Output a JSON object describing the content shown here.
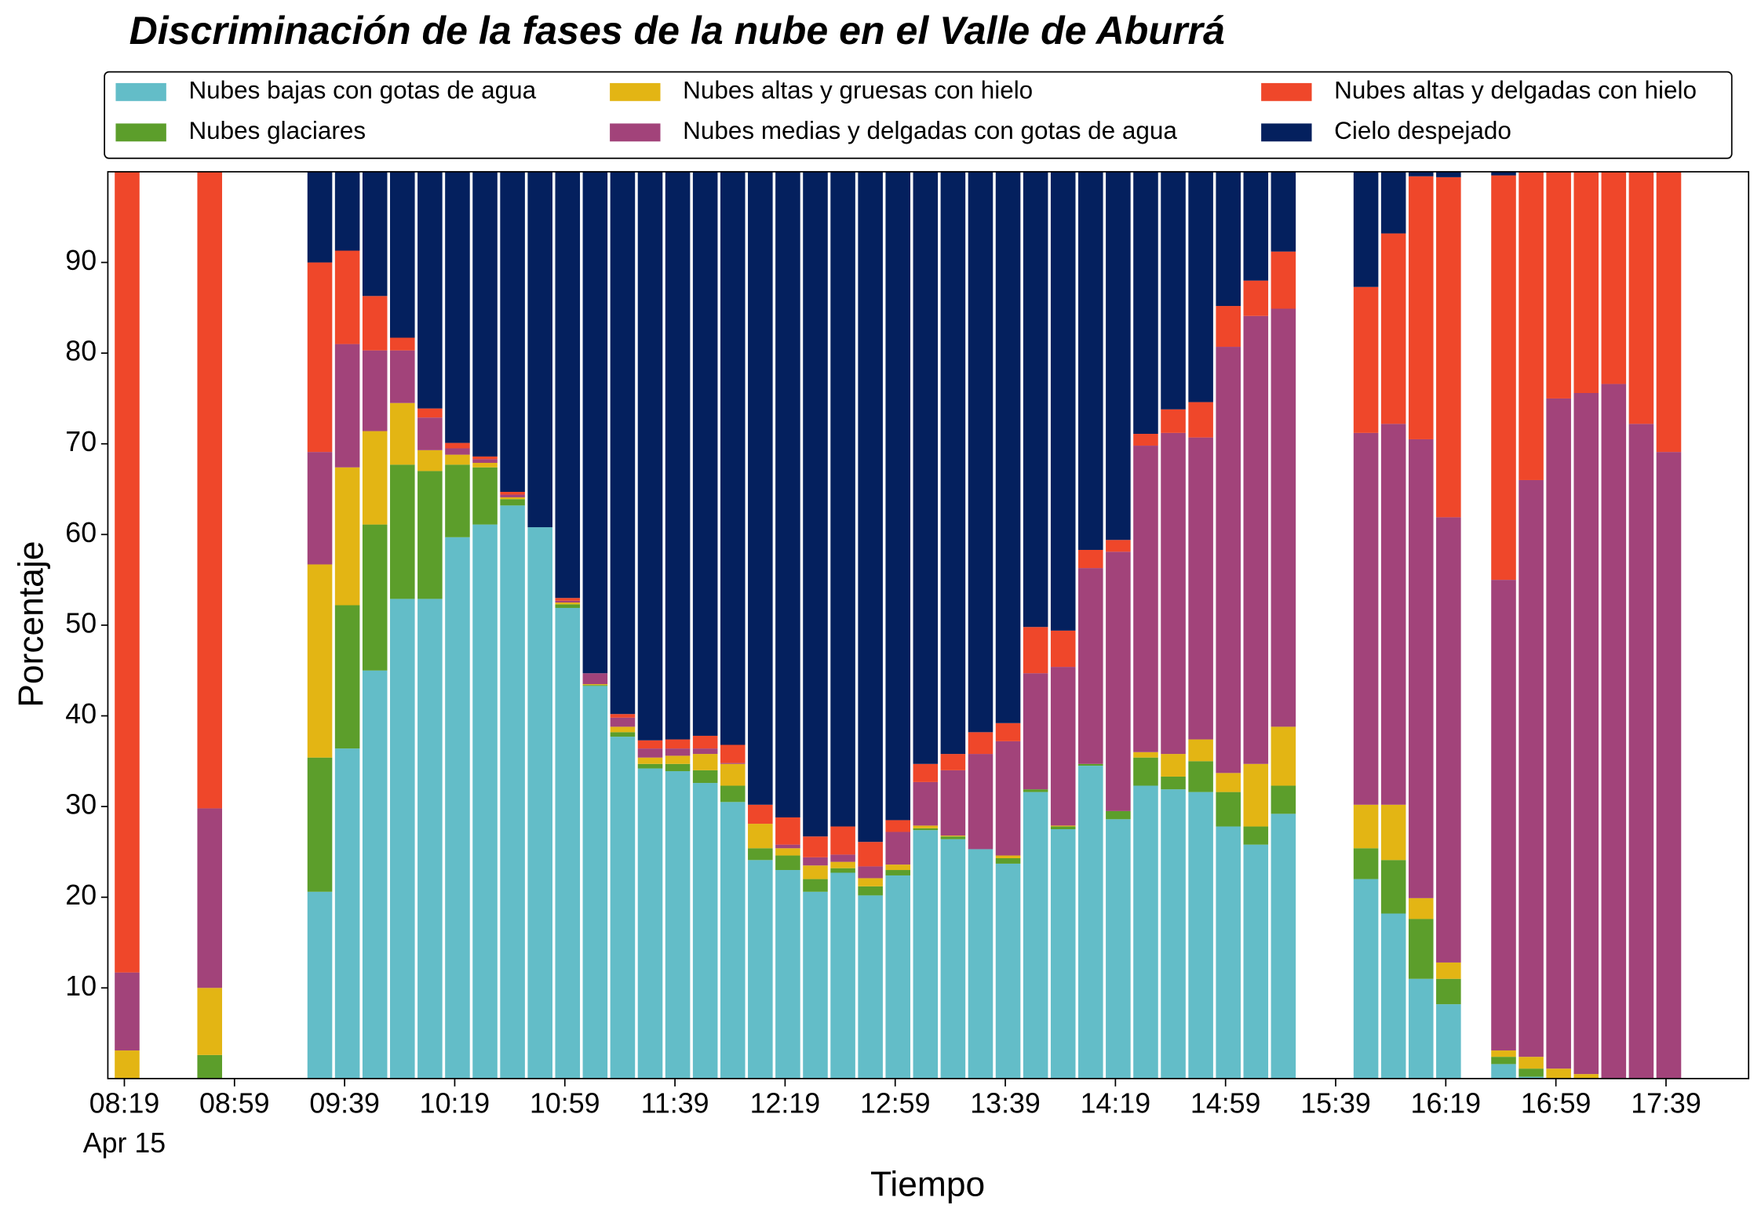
{
  "chart_data": {
    "type": "stacked_bar",
    "title": "Discriminación de la fases de la nube en el Valle de Aburrá",
    "xlabel": "Tiempo",
    "ylabel": "Porcentaje",
    "x_date_label": "Apr 15",
    "x": [
      "08:20",
      "08:50",
      "09:30",
      "09:40",
      "09:50",
      "10:00",
      "10:10",
      "10:20",
      "10:30",
      "10:40",
      "10:50",
      "11:00",
      "11:10",
      "11:20",
      "11:30",
      "11:40",
      "11:50",
      "12:00",
      "12:10",
      "12:20",
      "12:30",
      "12:40",
      "12:50",
      "13:00",
      "13:10",
      "13:20",
      "13:30",
      "13:40",
      "13:50",
      "14:00",
      "14:10",
      "14:20",
      "14:30",
      "14:40",
      "14:50",
      "15:00",
      "15:10",
      "15:20",
      "15:50",
      "16:00",
      "16:10",
      "16:20",
      "16:40",
      "16:50",
      "17:00",
      "17:10",
      "17:20",
      "17:30",
      "17:40"
    ],
    "xlim": [
      "08:13",
      "18:09"
    ],
    "xticks": [
      "08:19",
      "08:59",
      "09:39",
      "10:19",
      "10:59",
      "11:39",
      "12:19",
      "12:59",
      "13:39",
      "14:19",
      "14:59",
      "15:39",
      "16:19",
      "16:59",
      "17:39"
    ],
    "ylim": [
      0,
      100
    ],
    "yticks": [
      10,
      20,
      30,
      40,
      50,
      60,
      70,
      80,
      90
    ],
    "legend": "top",
    "series": [
      {
        "name": "Nubes bajas con gotas de agua",
        "color": "#63bdc8",
        "values": [
          0,
          0,
          20.6,
          36.4,
          45.0,
          52.9,
          52.9,
          59.7,
          61.1,
          63.2,
          60.8,
          51.9,
          43.3,
          37.7,
          34.2,
          33.9,
          32.6,
          30.5,
          24.1,
          23.0,
          20.6,
          22.7,
          20.2,
          22.4,
          27.4,
          26.4,
          25.3,
          23.7,
          31.6,
          27.5,
          34.5,
          28.6,
          32.3,
          31.9,
          31.6,
          27.8,
          25.8,
          29.2,
          22.0,
          18.2,
          11.0,
          8.2,
          1.6,
          0.2,
          0,
          0,
          0,
          0,
          0
        ]
      },
      {
        "name": "Nubes glaciares",
        "color": "#5c9e2b",
        "values": [
          0,
          2.6,
          14.8,
          15.8,
          16.1,
          14.8,
          14.1,
          8.0,
          6.3,
          0.7,
          0,
          0.4,
          0.1,
          0.5,
          0.5,
          0.8,
          1.4,
          1.8,
          1.3,
          1.6,
          1.4,
          0.5,
          1.0,
          0.6,
          0.2,
          0.3,
          0,
          0.6,
          0.3,
          0.3,
          0.2,
          0.9,
          3.1,
          1.4,
          3.4,
          3.8,
          2.0,
          3.1,
          3.4,
          5.9,
          6.6,
          2.8,
          0.8,
          0.9,
          0,
          0,
          0,
          0,
          0
        ]
      },
      {
        "name": "Nubes altas y gruesas con hielo",
        "color": "#e3b514",
        "values": [
          3.1,
          7.4,
          21.3,
          15.2,
          10.3,
          6.8,
          2.3,
          1.1,
          0.5,
          0.2,
          0,
          0.2,
          0.1,
          0.6,
          0.7,
          0.9,
          1.8,
          2.4,
          2.7,
          0.8,
          1.5,
          0.7,
          0.9,
          0.6,
          0.3,
          0.1,
          0,
          0.3,
          0,
          0.1,
          0,
          0,
          0.6,
          2.5,
          2.4,
          2.1,
          6.9,
          6.5,
          4.8,
          6.1,
          2.3,
          1.8,
          0.7,
          1.3,
          1.1,
          0.5,
          0,
          0,
          0
        ]
      },
      {
        "name": "Nubes medias y delgadas con gotas de agua",
        "color": "#a2437a",
        "values": [
          8.6,
          19.8,
          12.4,
          13.6,
          8.9,
          5.8,
          3.6,
          0.7,
          0.4,
          0.3,
          0,
          0.2,
          1.2,
          1.0,
          1.0,
          0.8,
          0.6,
          0.1,
          0,
          0.4,
          0.9,
          0.8,
          1.3,
          3.6,
          4.8,
          7.2,
          10.5,
          12.6,
          12.8,
          17.5,
          21.6,
          28.6,
          33.8,
          35.4,
          33.3,
          47.0,
          49.4,
          46.1,
          41.0,
          42.0,
          50.6,
          49.1,
          51.9,
          63.6,
          73.9,
          75.1,
          76.6,
          72.2,
          69.1
        ]
      },
      {
        "name": "Nubes altas y delgadas con hielo",
        "color": "#ef472a",
        "values": [
          88.3,
          70.2,
          20.9,
          10.3,
          6.0,
          1.4,
          1.0,
          0.6,
          0.3,
          0.3,
          0,
          0.3,
          0,
          0.4,
          0.9,
          1.0,
          1.4,
          2.0,
          2.1,
          3.0,
          2.3,
          3.1,
          2.7,
          1.3,
          2.0,
          1.8,
          2.4,
          2.0,
          5.1,
          4.0,
          2.0,
          1.3,
          1.3,
          2.6,
          3.9,
          4.5,
          3.9,
          6.3,
          16.1,
          21.0,
          29.0,
          37.5,
          44.6,
          34.0,
          25.0,
          24.4,
          23.4,
          27.8,
          30.9
        ]
      },
      {
        "name": "Cielo despejado",
        "color": "#04205e",
        "values": [
          0,
          0,
          10.0,
          8.7,
          13.7,
          18.3,
          26.1,
          29.9,
          31.4,
          35.3,
          39.2,
          47.0,
          55.3,
          59.8,
          62.7,
          62.6,
          62.2,
          63.2,
          69.8,
          71.2,
          73.3,
          72.2,
          73.9,
          71.5,
          65.3,
          64.2,
          61.8,
          60.8,
          50.2,
          50.6,
          41.7,
          40.6,
          28.9,
          26.2,
          25.4,
          14.8,
          12.0,
          8.8,
          12.7,
          6.8,
          0.5,
          0.6,
          0.4,
          0,
          0,
          0,
          0,
          0,
          0
        ]
      }
    ]
  }
}
